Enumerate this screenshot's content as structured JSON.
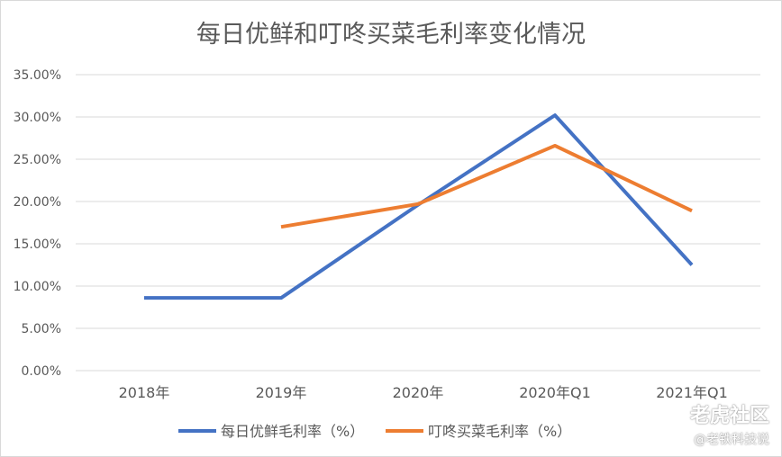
{
  "chart_data": {
    "type": "line",
    "title": "每日优鲜和叮咚买菜毛利率变化情况",
    "categories": [
      "2018年",
      "2019年",
      "2020年",
      "2020年Q1",
      "2021年Q1"
    ],
    "series": [
      {
        "name": "每日优鲜毛利率（%）",
        "color": "#4472c4",
        "values": [
          8.6,
          8.6,
          19.6,
          30.2,
          12.5
        ]
      },
      {
        "name": "叮咚买菜毛利率（%）",
        "color": "#ed7d31",
        "values": [
          null,
          17.0,
          19.7,
          26.6,
          18.9
        ]
      }
    ],
    "ylim": [
      0,
      35
    ],
    "yticks": [
      "0.00%",
      "5.00%",
      "10.00%",
      "15.00%",
      "20.00%",
      "25.00%",
      "30.00%",
      "35.00%"
    ],
    "grid": true,
    "legend": "bottom"
  },
  "watermark": {
    "brand": "老虎社区",
    "handle": "@老铁科技说"
  }
}
